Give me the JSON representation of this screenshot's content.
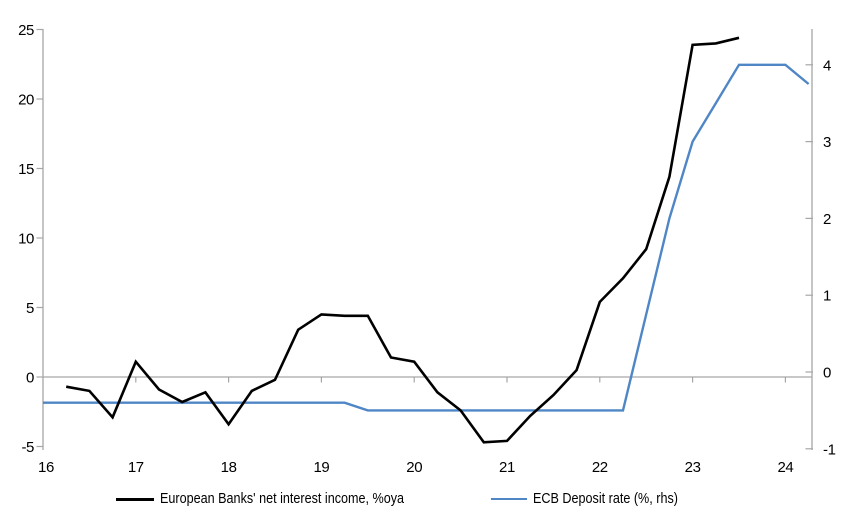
{
  "colors": {
    "background": "#ffffff",
    "axis": "#a6a6a6",
    "text": "#000000",
    "series1": "#000000",
    "series2": "#4f86c6"
  },
  "legend": {
    "position": "bottom",
    "series1_label": "European Banks' net interest income, %oya",
    "series2_label": "ECB Deposit rate (%, rhs)"
  },
  "chart_data": {
    "type": "line",
    "title": "",
    "xlabel": "",
    "ylabel_left": "",
    "ylabel_right": "",
    "grid": "zero-line-only",
    "legend_position": "bottom",
    "x_axis": {
      "tick_values": [
        16,
        17,
        18,
        19,
        20,
        21,
        22,
        23,
        24
      ],
      "tick_labels": [
        "16",
        "17",
        "18",
        "19",
        "20",
        "21",
        "22",
        "23",
        "24"
      ],
      "range": [
        16,
        24.33
      ]
    },
    "left_axis": {
      "tick_values": [
        25,
        20,
        15,
        10,
        5,
        0,
        -5
      ],
      "tick_labels": [
        "25",
        "20",
        "15",
        "10",
        "5",
        "0",
        "-5"
      ],
      "range": [
        -5.4,
        25
      ]
    },
    "right_axis": {
      "tick_values": [
        4,
        3,
        2,
        1,
        0,
        -1
      ],
      "tick_labels": [
        "4",
        "3",
        "2",
        "1",
        "0",
        "-1"
      ],
      "range": [
        -1.05,
        4.45
      ]
    },
    "series": [
      {
        "name": "European Banks' net interest income, %oya",
        "axis": "left",
        "color": "#000000",
        "stroke_width": 2.6,
        "x": [
          16.25,
          16.5,
          16.75,
          17,
          17.25,
          17.5,
          17.75,
          18,
          18.25,
          18.5,
          18.75,
          19,
          19.25,
          19.5,
          19.75,
          20,
          20.25,
          20.5,
          20.75,
          21,
          21.25,
          21.5,
          21.75,
          22,
          22.25,
          22.5,
          22.75,
          23,
          23.25,
          23.5
        ],
        "values": [
          -0.7,
          -1.0,
          -2.9,
          1.1,
          -0.9,
          -1.8,
          -1.1,
          -3.4,
          -1.0,
          -0.2,
          3.4,
          4.5,
          4.4,
          4.4,
          1.4,
          1.1,
          -1.1,
          -2.4,
          -4.7,
          -4.6,
          -2.8,
          -1.3,
          0.5,
          5.4,
          7.1,
          9.2,
          14.4,
          23.9,
          24.0,
          24.4
        ]
      },
      {
        "name": "ECB Deposit rate (%, rhs)",
        "axis": "right",
        "color": "#4f86c6",
        "stroke_width": 2.4,
        "x": [
          16,
          16.25,
          16.5,
          16.75,
          17,
          17.25,
          17.5,
          17.75,
          18,
          18.25,
          18.5,
          18.75,
          19,
          19.25,
          19.5,
          19.75,
          20,
          20.25,
          20.5,
          20.75,
          21,
          21.25,
          21.5,
          21.75,
          22,
          22.25,
          22.5,
          22.75,
          23,
          23.25,
          23.5,
          23.75,
          24,
          24.25
        ],
        "values": [
          -0.4,
          -0.4,
          -0.4,
          -0.4,
          -0.4,
          -0.4,
          -0.4,
          -0.4,
          -0.4,
          -0.4,
          -0.4,
          -0.4,
          -0.4,
          -0.4,
          -0.5,
          -0.5,
          -0.5,
          -0.5,
          -0.5,
          -0.5,
          -0.5,
          -0.5,
          -0.5,
          -0.5,
          -0.5,
          -0.5,
          0.75,
          2.0,
          3.0,
          3.5,
          4.0,
          4.0,
          4.0,
          3.75
        ]
      }
    ]
  }
}
